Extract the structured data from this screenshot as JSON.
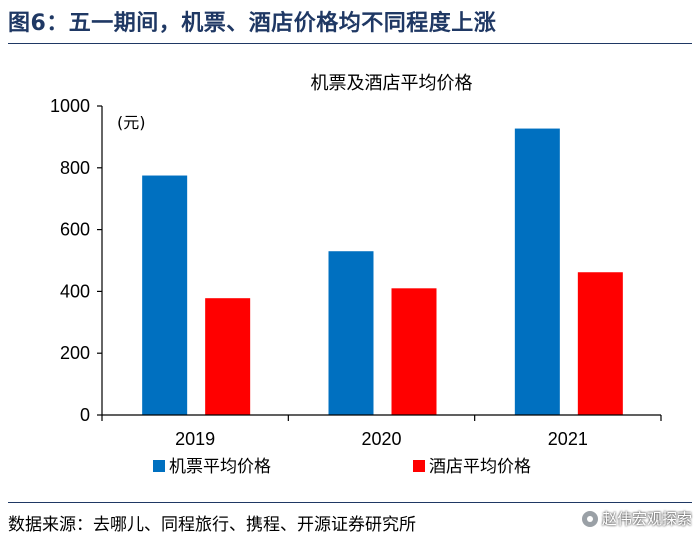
{
  "figure_title": "图6：五一期间，机票、酒店价格均不同程度上涨",
  "source_text": "数据来源：去哪儿、同程旅行、携程、开源证券研究所",
  "watermark_text": "赵伟宏观探索",
  "colors": {
    "title": "#1f3864",
    "series_air": "#0070c0",
    "series_hotel": "#ff0000",
    "axis": "#000000"
  },
  "chart_data": {
    "type": "bar",
    "title": "机票及酒店平均价格",
    "unit_label": "(元)",
    "categories": [
      "2019",
      "2020",
      "2021"
    ],
    "series": [
      {
        "name": "机票平均价格",
        "values": [
          775,
          530,
          927
        ]
      },
      {
        "name": "酒店平均价格",
        "values": [
          378,
          410,
          462
        ]
      }
    ],
    "ylim": [
      0,
      1000
    ],
    "yticks": [
      0,
      200,
      400,
      600,
      800,
      1000
    ],
    "grid": false,
    "legend_position": "bottom"
  }
}
